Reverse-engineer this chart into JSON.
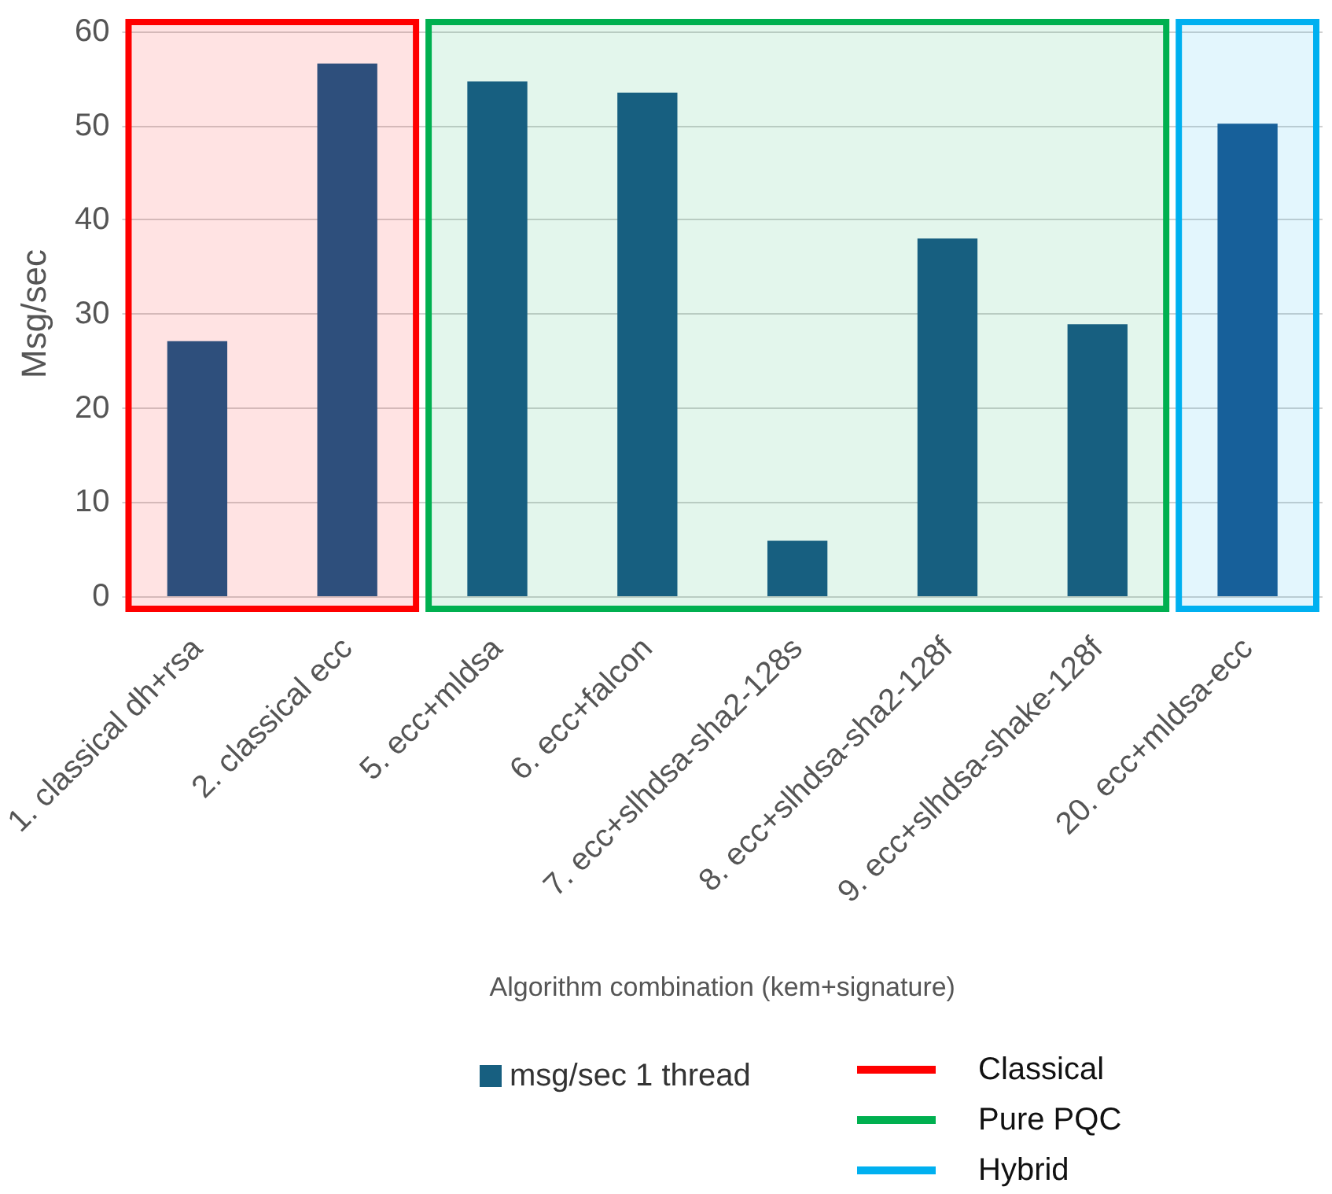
{
  "chart_data": {
    "type": "bar",
    "xlabel": "Algorithm combination (kem+signature)",
    "ylabel": "Msg/sec",
    "categories": [
      "1. classical dh+rsa",
      "2. classical ecc",
      "5. ecc+mldsa",
      "6. ecc+falcon",
      "7. ecc+slhdsa-sha2-128s",
      "8. ecc+slhdsa-sha2-128f",
      "9. ecc+slhdsa-shake-128f",
      "20. ecc+mldsa-ecc"
    ],
    "series": [
      {
        "name": "msg/sec 1 thread",
        "color": "#175f80",
        "colors": [
          "#2e4f7c",
          "#2e4f7c",
          "#175f80",
          "#175f80",
          "#175f80",
          "#175f80",
          "#175f80",
          "#17609a"
        ],
        "values": [
          27.1,
          56.6,
          54.7,
          53.5,
          5.9,
          38.0,
          28.9,
          50.2
        ]
      }
    ],
    "ylim": [
      0,
      60
    ],
    "yticks": [
      0,
      10,
      20,
      30,
      40,
      50,
      60
    ],
    "grid": "y",
    "legend": "bottom",
    "bands": [
      {
        "axis": "x",
        "from": "1. classical dh+rsa",
        "to": "2. classical ecc",
        "label": "Classical",
        "color": "#ff0000"
      },
      {
        "axis": "x",
        "from": "5. ecc+mldsa",
        "to": "9. ecc+slhdsa-shake-128f",
        "label": "Pure PQC",
        "color": "#00b050"
      },
      {
        "axis": "x",
        "from": "20. ecc+mldsa-ecc",
        "to": "20. ecc+mldsa-ecc",
        "label": "Hybrid",
        "color": "#00b0f0"
      }
    ]
  }
}
